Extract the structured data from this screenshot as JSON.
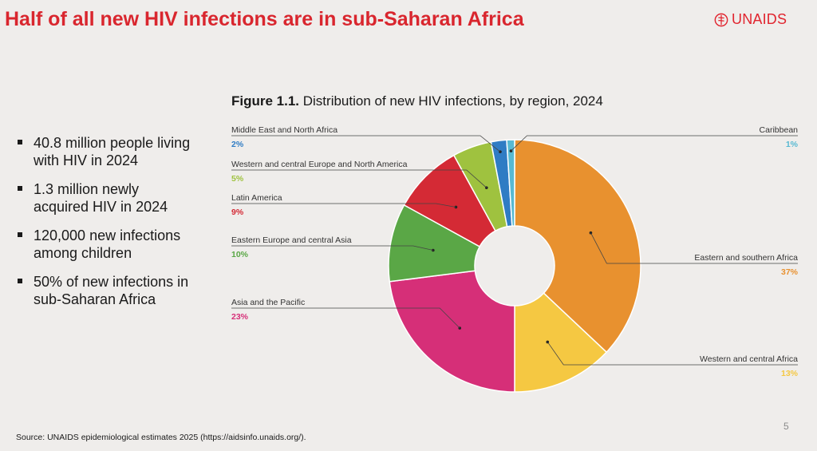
{
  "slide": {
    "title": "Half of all new HIV infections are in sub-Saharan Africa",
    "logo_text": "UNAIDS",
    "page_number": "5",
    "source": "Source: UNAIDS epidemiological estimates 2025 (https://aidsinfo.unaids.org/)."
  },
  "figure": {
    "title_bold": "Figure 1.1.",
    "title_rest": " Distribution of new HIV infections, by region, 2024"
  },
  "bullets": [
    "40.8 million people living with HIV in 2024",
    "1.3 million newly acquired HIV in 2024",
    "120,000 new infections among children",
    "50% of new infections in sub-Saharan Africa"
  ],
  "chart_data": {
    "type": "pie",
    "variant": "donut",
    "title": "Figure 1.1. Distribution of new HIV infections, by region, 2024",
    "slices": [
      {
        "label": "Eastern and southern Africa",
        "value": 37,
        "value_label": "37%",
        "color": "#e8912f"
      },
      {
        "label": "Western and central Africa",
        "value": 13,
        "value_label": "13%",
        "color": "#f5c842"
      },
      {
        "label": "Asia and the Pacific",
        "value": 23,
        "value_label": "23%",
        "color": "#d62f78"
      },
      {
        "label": "Eastern Europe and central Asia",
        "value": 10,
        "value_label": "10%",
        "color": "#5aa746"
      },
      {
        "label": "Latin America",
        "value": 9,
        "value_label": "9%",
        "color": "#d42a35"
      },
      {
        "label": "Western and central Europe and North America",
        "value": 5,
        "value_label": "5%",
        "color": "#9fc23f"
      },
      {
        "label": "Middle East and North Africa",
        "value": 2,
        "value_label": "2%",
        "color": "#2f7cc4"
      },
      {
        "label": "Caribbean",
        "value": 1,
        "value_label": "1%",
        "color": "#57b9d2"
      }
    ]
  },
  "colors": {
    "title": "#d9262e",
    "background": "#efedeb"
  }
}
